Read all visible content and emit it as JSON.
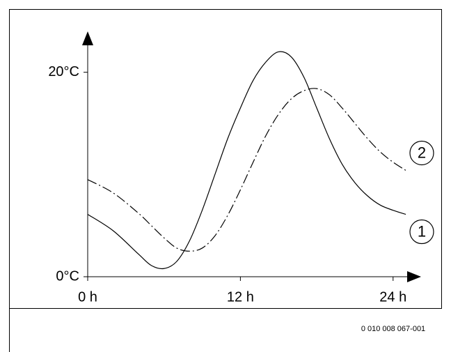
{
  "chart_data": {
    "type": "line",
    "x": [
      0,
      2,
      4,
      5,
      6,
      7,
      8,
      9,
      10,
      11,
      12,
      13,
      14,
      15,
      16,
      17,
      18,
      19,
      20,
      21,
      22,
      23,
      24,
      25
    ],
    "series": [
      {
        "name": "1",
        "color": "#000000",
        "style": "solid",
        "values": [
          6.1,
          4.5,
          2.2,
          1.1,
          0.8,
          1.5,
          3.5,
          6.5,
          10,
          13.5,
          16.5,
          19.2,
          21,
          22,
          21.5,
          19.5,
          16.5,
          13.5,
          11,
          9.2,
          7.9,
          7,
          6.5,
          6.1
        ]
      },
      {
        "name": "2",
        "color": "#000000",
        "style": "dashdot",
        "values": [
          9.5,
          8.2,
          6.2,
          5,
          3.8,
          2.8,
          2.5,
          2.8,
          4,
          6,
          8.5,
          11.2,
          13.8,
          15.9,
          17.4,
          18.2,
          18.4,
          17.8,
          16.5,
          15,
          13.5,
          12.2,
          11.2,
          10.4
        ]
      }
    ],
    "xlim": [
      0,
      26.2
    ],
    "ylim": [
      0,
      24
    ],
    "xticks": [
      {
        "value": 0,
        "label": "0 h"
      },
      {
        "value": 12,
        "label": "12 h"
      },
      {
        "value": 24,
        "label": "24 h"
      }
    ],
    "yticks": [
      {
        "value": 0,
        "label": "0°C"
      },
      {
        "value": 20,
        "label": "20°C"
      }
    ],
    "annotation": "0 010 008 067-001"
  }
}
